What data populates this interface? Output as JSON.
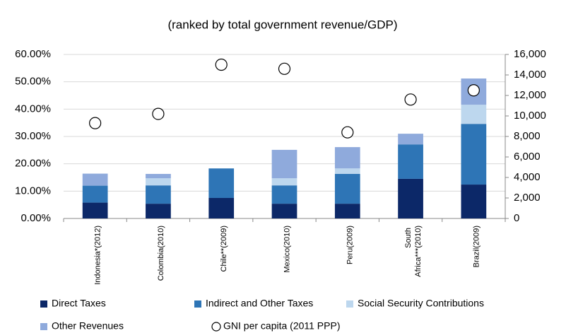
{
  "chart_data": {
    "type": "bar",
    "stacked": true,
    "title": "(ranked by total government revenue/GDP)",
    "categories": [
      "Indonesia*(2012)",
      "Colombia(2010)",
      "Chile**(2009)",
      "Mexico(2010)",
      "Peru(2009)",
      "South Africa***(2010)",
      "Brazil(2009)"
    ],
    "series": [
      {
        "name": "Direct Taxes",
        "color": "#0c2868",
        "values": [
          5.8,
          5.4,
          7.5,
          5.4,
          5.4,
          14.5,
          12.4
        ]
      },
      {
        "name": "Indirect and Other Taxes",
        "color": "#2e75b6",
        "values": [
          6.2,
          6.7,
          10.8,
          6.7,
          10.9,
          12.6,
          22.2
        ]
      },
      {
        "name": "Social Security Contributions",
        "color": "#bdd7ee",
        "values": [
          0,
          2.6,
          0,
          2.6,
          2.0,
          0,
          7.0
        ]
      },
      {
        "name": "Other Revenues",
        "color": "#8faadc",
        "values": [
          4.4,
          1.6,
          0,
          10.4,
          7.8,
          3.9,
          9.6
        ]
      },
      {
        "name": "GNI per capita (2011 PPP)",
        "type": "scatter",
        "axis": "y2",
        "color": "#ffffff",
        "values": [
          9300,
          10200,
          15000,
          14600,
          8400,
          11600,
          12500
        ]
      }
    ],
    "ylim": [
      0,
      60
    ],
    "yticks": [
      {
        "value": 0,
        "label": "0.00%"
      },
      {
        "value": 10,
        "label": "10.00%"
      },
      {
        "value": 20,
        "label": "20.00%"
      },
      {
        "value": 30,
        "label": "30.00%"
      },
      {
        "value": 40,
        "label": "40.00%"
      },
      {
        "value": 50,
        "label": "50.00%"
      },
      {
        "value": 60,
        "label": "60.00%"
      }
    ],
    "y2lim": [
      0,
      16000
    ],
    "y2ticks": [
      0,
      {
        "value": 2000,
        "label": "2,000"
      },
      {
        "value": 4000,
        "label": "4,000"
      },
      {
        "value": 6000,
        "label": "6,000"
      },
      {
        "value": 8000,
        "label": "8,000"
      },
      {
        "value": 10000,
        "label": "10,000"
      },
      {
        "value": 12000,
        "label": "12,000"
      },
      {
        "value": 14000,
        "label": "14,000"
      },
      {
        "value": 16000,
        "label": "16,000"
      }
    ],
    "grid": true
  }
}
